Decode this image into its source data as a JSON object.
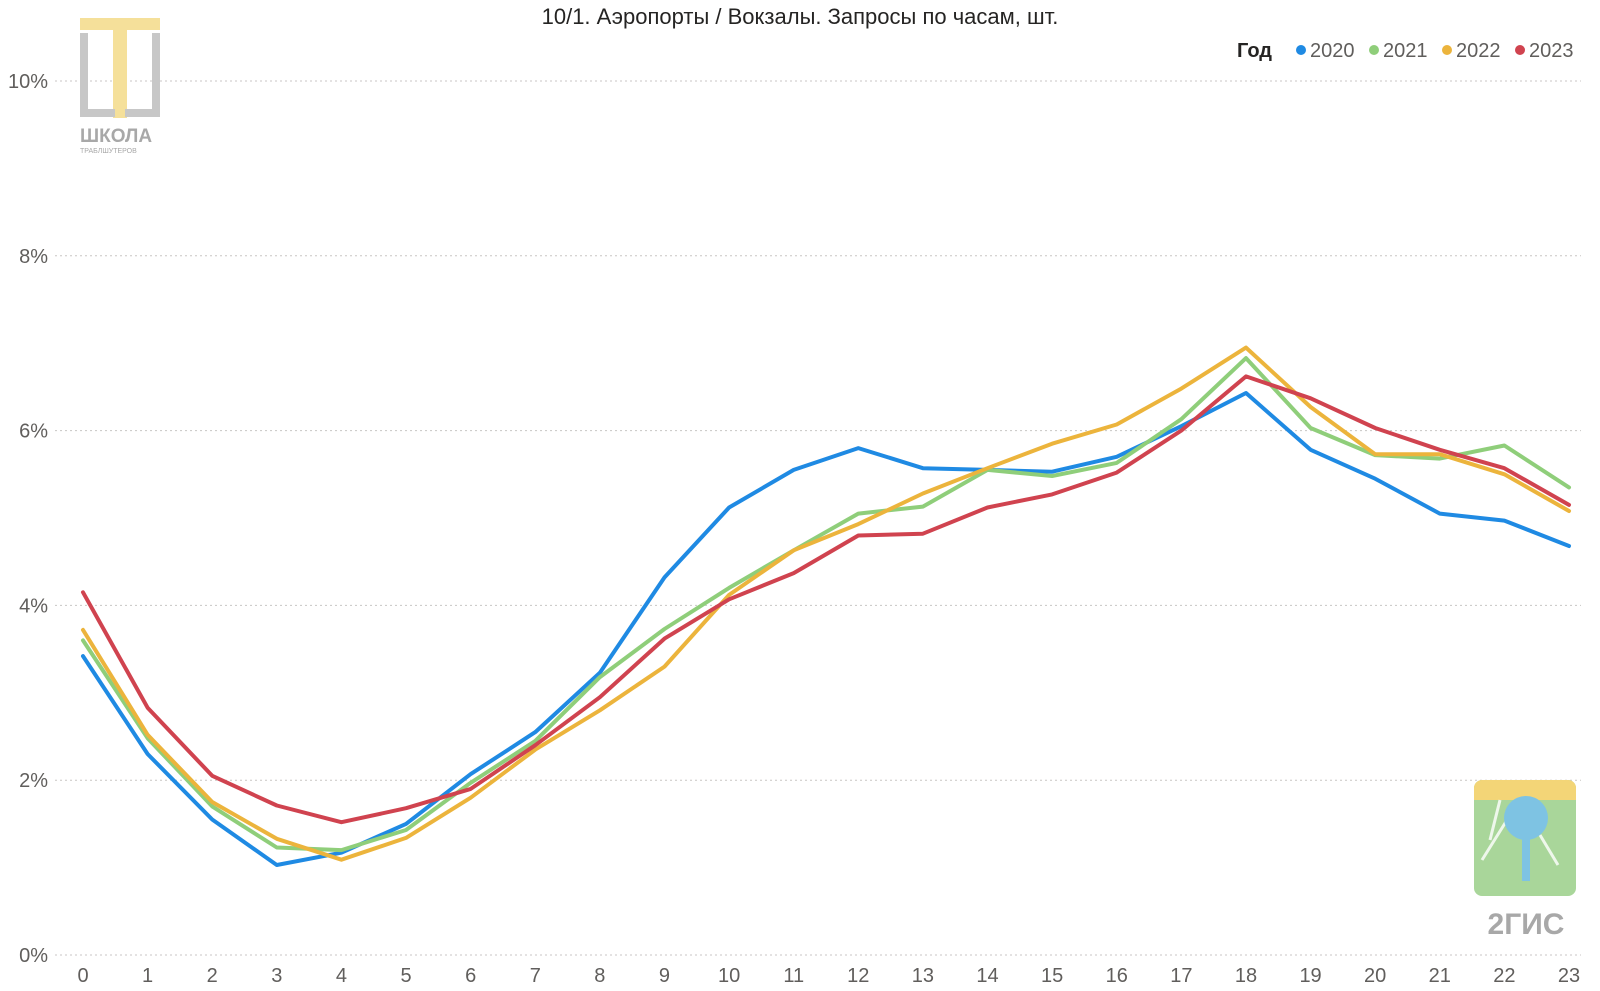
{
  "logos": {
    "school": {
      "text": "ШКОЛА",
      "subtext": "ТРАБЛШУТЕРОВ"
    },
    "dgis": {
      "text": "2ГИС"
    }
  },
  "chart_data": {
    "type": "line",
    "title": "10/1. Аэропорты / Вокзалы. Запросы по часам, шт.",
    "xlabel": "",
    "ylabel": "",
    "legend_title": "Год",
    "legend_position": "top-right",
    "grid": true,
    "x": [
      0,
      1,
      2,
      3,
      4,
      5,
      6,
      7,
      8,
      9,
      10,
      11,
      12,
      13,
      14,
      15,
      16,
      17,
      18,
      19,
      20,
      21,
      22,
      23
    ],
    "ylim": [
      0,
      10
    ],
    "y_ticks": [
      0,
      2,
      4,
      6,
      8,
      10
    ],
    "y_tick_labels": [
      "0%",
      "2%",
      "4%",
      "6%",
      "8%",
      "10%"
    ],
    "series": [
      {
        "name": "2020",
        "color": "#1f8ae3",
        "values": [
          3.42,
          2.3,
          1.55,
          1.03,
          1.17,
          1.5,
          2.07,
          2.55,
          3.23,
          4.32,
          5.12,
          5.55,
          5.8,
          5.57,
          5.55,
          5.53,
          5.7,
          6.05,
          6.43,
          5.78,
          5.45,
          5.05,
          4.97,
          4.68
        ]
      },
      {
        "name": "2021",
        "color": "#8fce7a",
        "values": [
          3.6,
          2.48,
          1.7,
          1.23,
          1.2,
          1.43,
          1.97,
          2.45,
          3.18,
          3.73,
          4.2,
          4.63,
          5.05,
          5.13,
          5.55,
          5.48,
          5.63,
          6.13,
          6.83,
          6.03,
          5.72,
          5.68,
          5.83,
          5.35
        ]
      },
      {
        "name": "2022",
        "color": "#ecb43c",
        "values": [
          3.72,
          2.52,
          1.75,
          1.33,
          1.09,
          1.34,
          1.8,
          2.35,
          2.8,
          3.3,
          4.12,
          4.63,
          4.93,
          5.28,
          5.57,
          5.85,
          6.07,
          6.48,
          6.95,
          6.27,
          5.73,
          5.73,
          5.5,
          5.08
        ]
      },
      {
        "name": "2023",
        "color": "#d0434f",
        "values": [
          4.15,
          2.83,
          2.05,
          1.71,
          1.52,
          1.68,
          1.9,
          2.4,
          2.95,
          3.62,
          4.07,
          4.37,
          4.8,
          4.82,
          5.12,
          5.27,
          5.52,
          6.0,
          6.62,
          6.37,
          6.03,
          5.78,
          5.57,
          5.15
        ]
      }
    ]
  }
}
